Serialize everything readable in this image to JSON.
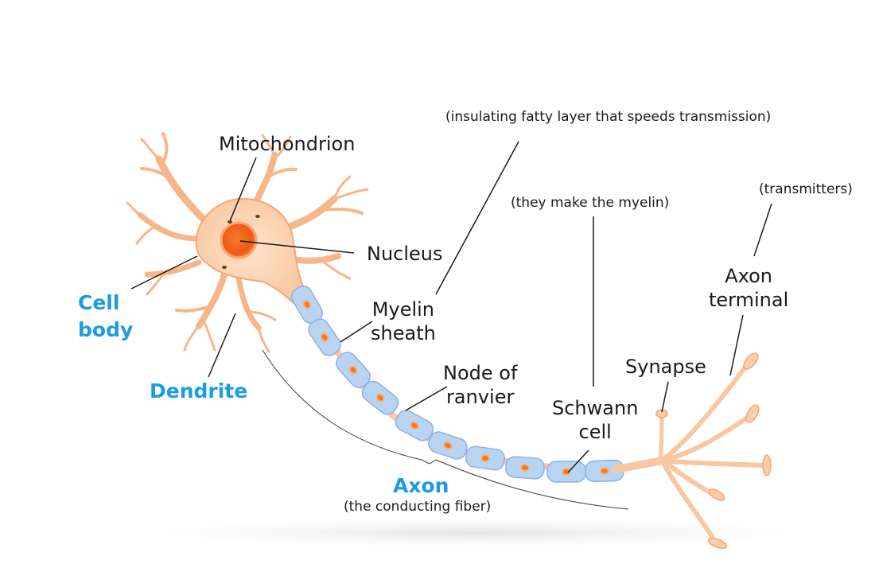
{
  "labels": {
    "mitochondrion": "Mitochondrion",
    "nucleus": "Nucleus",
    "cell_body": [
      "Cell",
      "body"
    ],
    "dendrite": "Dendrite",
    "myelin_sheath": [
      "Myelin",
      "sheath"
    ],
    "myelin_note": "(insulating fatty layer that speeds transmission)",
    "node_of_ranvier": [
      "Node of",
      "ranvier"
    ],
    "schwann_note": "(they make the myelin)",
    "schwann_cell": [
      "Schwann",
      "cell"
    ],
    "synapse": "Synapse",
    "transmitters_note": "(transmitters)",
    "axon_terminal": [
      "Axon",
      "terminal"
    ],
    "axon": "Axon",
    "axon_note": "(the conducting fiber)"
  },
  "colors": {
    "cell_fill": "#fbd2b0",
    "cell_stroke": "#f2a878",
    "nucleus": "#f36a20",
    "myelin_fill": "#b9d3f3",
    "myelin_stroke": "#8eb1e2",
    "node_dot": "#f07a2a",
    "label_accent": "#1c9be3"
  }
}
